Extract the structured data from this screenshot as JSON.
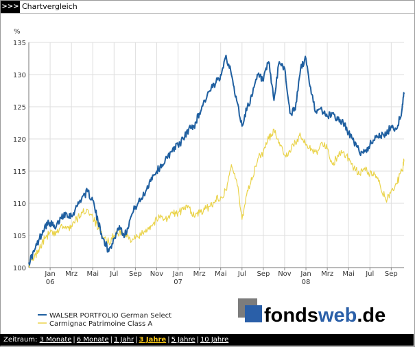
{
  "header": {
    "arrows": ">>>",
    "title": "Chartvergleich"
  },
  "logo": {
    "text_main": "fonds",
    "text_accent": "web",
    "text_tail": ".de"
  },
  "colors": {
    "series1": "#1f5fa0",
    "series2": "#ead34a",
    "grid": "#dedede",
    "logo_blue": "#2a5fa8",
    "logo_text": "#111111",
    "active_link": "#f5c518"
  },
  "footer": {
    "label": "Zeitraum:",
    "links": [
      {
        "label": "3 Monate",
        "active": false
      },
      {
        "label": "6 Monate",
        "active": false
      },
      {
        "label": "1 Jahr",
        "active": false
      },
      {
        "label": "3 Jahre",
        "active": true
      },
      {
        "label": "5 Jahre",
        "active": false
      },
      {
        "label": "10 Jahre",
        "active": false
      }
    ]
  },
  "chart_data": {
    "type": "line",
    "ylabel": "%",
    "ylim": [
      100,
      135
    ],
    "yticks": [
      100,
      105,
      110,
      115,
      120,
      125,
      130,
      135
    ],
    "xlim": [
      0,
      35.2
    ],
    "x_tick_labels": [
      "Jan",
      "Mrz",
      "Mai",
      "Jul",
      "Sep",
      "Nov",
      "Jan",
      "Mrz",
      "Mai",
      "Jul",
      "Sep",
      "Nov",
      "Jan",
      "Mrz",
      "Mai",
      "Jul",
      "Sep"
    ],
    "x_tick_positions": [
      2,
      4,
      6,
      8,
      10,
      12,
      14,
      16,
      18,
      20,
      22,
      24,
      26,
      28,
      30,
      32,
      34
    ],
    "year_labels": [
      {
        "label": "06",
        "x": 2
      },
      {
        "label": "07",
        "x": 14
      },
      {
        "label": "08",
        "x": 26
      }
    ],
    "grid": true,
    "legend_position": "bottom-left",
    "series": [
      {
        "name": "WALSER PORTFOLIO German Select",
        "x": [
          0,
          0.5,
          1,
          1.5,
          2,
          2.5,
          3,
          3.5,
          4,
          4.5,
          5,
          5.5,
          6,
          6.5,
          7,
          7.5,
          8,
          8.5,
          9,
          9.5,
          10,
          10.5,
          11,
          11.5,
          12,
          12.5,
          13,
          13.5,
          14,
          14.5,
          15,
          15.5,
          16,
          16.5,
          17,
          17.5,
          18,
          18.5,
          19,
          19.5,
          20,
          20.5,
          21,
          21.5,
          22,
          22.5,
          23,
          23.5,
          24,
          24.5,
          25,
          25.5,
          26,
          26.5,
          27,
          27.5,
          28,
          28.5,
          29,
          29.5,
          30,
          30.5,
          31,
          31.5,
          32,
          32.5,
          33,
          33.5,
          34,
          34.5,
          35,
          35.2
        ],
        "values": [
          100.8,
          102.5,
          104.5,
          106.5,
          107.0,
          106.0,
          107.8,
          108.5,
          108.0,
          109.5,
          111.0,
          111.8,
          110.5,
          107.0,
          104.5,
          102.5,
          104.5,
          106.5,
          105.0,
          107.5,
          109.5,
          110.5,
          112.0,
          114.0,
          115.0,
          116.0,
          117.0,
          118.5,
          119.0,
          120.0,
          121.5,
          122.0,
          124.0,
          126.0,
          127.5,
          128.5,
          130.0,
          133.0,
          130.0,
          126.0,
          122.0,
          125.0,
          127.0,
          130.0,
          129.0,
          132.0,
          126.0,
          132.0,
          131.0,
          124.0,
          124.5,
          131.0,
          132.5,
          127.0,
          124.0,
          124.5,
          123.5,
          124.0,
          123.0,
          122.5,
          121.0,
          119.5,
          118.0,
          118.0,
          119.0,
          120.5,
          120.5,
          120.5,
          122.0,
          121.5,
          124.5,
          127.0
        ]
      },
      {
        "name": "Carmignac Patrimoine Class A",
        "x": [
          0,
          0.5,
          1,
          1.5,
          2,
          2.5,
          3,
          3.5,
          4,
          4.5,
          5,
          5.5,
          6,
          6.5,
          7,
          7.5,
          8,
          8.5,
          9,
          9.5,
          10,
          10.5,
          11,
          11.5,
          12,
          12.5,
          13,
          13.5,
          14,
          14.5,
          15,
          15.5,
          16,
          16.5,
          17,
          17.5,
          18,
          18.5,
          19,
          19.5,
          20,
          20.5,
          21,
          21.5,
          22,
          22.5,
          23,
          23.5,
          24,
          24.5,
          25,
          25.5,
          26,
          26.5,
          27,
          27.5,
          28,
          28.5,
          29,
          29.5,
          30,
          30.5,
          31,
          31.5,
          32,
          32.5,
          33,
          33.5,
          34,
          34.5,
          35,
          35.2
        ],
        "values": [
          100.5,
          101.5,
          103.0,
          104.5,
          105.5,
          105.0,
          106.5,
          106.0,
          106.5,
          107.5,
          108.5,
          109.0,
          108.0,
          106.0,
          104.5,
          104.0,
          105.0,
          105.5,
          105.0,
          104.5,
          104.5,
          105.0,
          106.0,
          106.5,
          107.5,
          108.0,
          107.5,
          108.5,
          108.5,
          109.0,
          109.5,
          108.0,
          108.5,
          109.0,
          109.5,
          110.5,
          111.0,
          112.0,
          116.0,
          113.5,
          107.5,
          112.0,
          114.0,
          117.0,
          118.0,
          120.0,
          121.5,
          119.5,
          117.5,
          118.0,
          119.5,
          120.5,
          119.0,
          118.5,
          118.0,
          119.5,
          118.5,
          116.0,
          117.5,
          118.0,
          117.0,
          115.5,
          114.5,
          115.5,
          114.5,
          114.5,
          112.5,
          110.5,
          112.0,
          113.0,
          115.0,
          116.5
        ]
      }
    ]
  }
}
